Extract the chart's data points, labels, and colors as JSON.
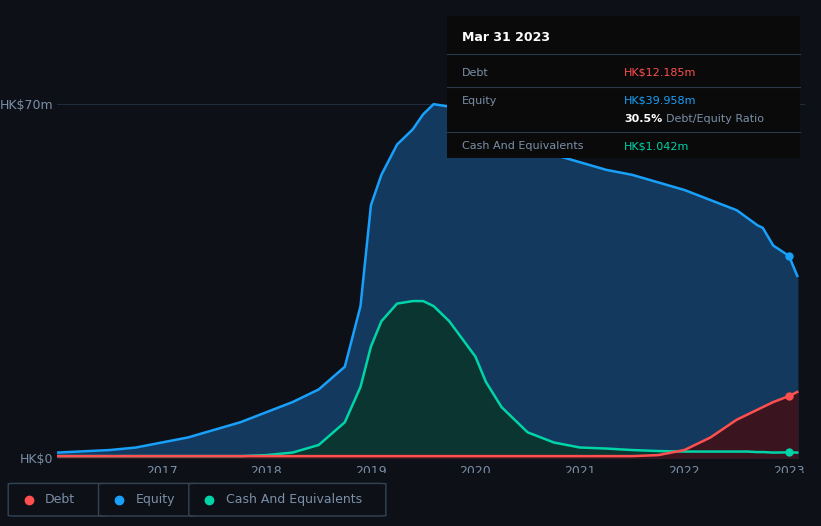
{
  "background_color": "#0d1117",
  "plot_bg_color": "#0d1117",
  "title": "Mar 31 2023",
  "tooltip": {
    "debt_label": "Debt",
    "debt_value": "HK$12.185m",
    "equity_label": "Equity",
    "equity_value": "HK$39.958m",
    "ratio_value": "30.5%",
    "ratio_label": "Debt/Equity Ratio",
    "cash_label": "Cash And Equivalents",
    "cash_value": "HK$1.042m"
  },
  "y_label_top": "HK$70m",
  "y_label_bottom": "HK$0",
  "x_ticks": [
    2017,
    2018,
    2019,
    2020,
    2021,
    2022,
    2023
  ],
  "equity_color": "#18a0fb",
  "equity_fill": "#133a5e",
  "debt_color": "#ff4f4f",
  "debt_fill": "#3a1520",
  "cash_color": "#00d4a8",
  "cash_fill": "#0a3530",
  "grid_color": "#1e2d40",
  "text_color": "#7a8fa8",
  "years": [
    2016.0,
    2016.2,
    2016.5,
    2016.75,
    2017.0,
    2017.25,
    2017.5,
    2017.75,
    2018.0,
    2018.25,
    2018.5,
    2018.75,
    2018.9,
    2019.0,
    2019.1,
    2019.25,
    2019.4,
    2019.5,
    2019.6,
    2019.75,
    2020.0,
    2020.1,
    2020.25,
    2020.5,
    2020.75,
    2021.0,
    2021.25,
    2021.5,
    2021.75,
    2022.0,
    2022.25,
    2022.5,
    2022.6,
    2022.7,
    2022.75,
    2022.85,
    2023.0,
    2023.08
  ],
  "equity": [
    1.0,
    1.2,
    1.5,
    2.0,
    3.0,
    4.0,
    5.5,
    7.0,
    9.0,
    11.0,
    13.5,
    18.0,
    30.0,
    50.0,
    56.0,
    62.0,
    65.0,
    68.0,
    70.0,
    69.5,
    68.5,
    67.0,
    64.0,
    62.0,
    60.0,
    58.5,
    57.0,
    56.0,
    54.5,
    53.0,
    51.0,
    49.0,
    47.5,
    46.0,
    45.5,
    42.0,
    39.958,
    36.0
  ],
  "debt": [
    0.3,
    0.3,
    0.3,
    0.3,
    0.3,
    0.3,
    0.3,
    0.3,
    0.3,
    0.3,
    0.3,
    0.3,
    0.3,
    0.3,
    0.3,
    0.3,
    0.3,
    0.3,
    0.3,
    0.3,
    0.3,
    0.3,
    0.3,
    0.3,
    0.3,
    0.3,
    0.3,
    0.3,
    0.5,
    1.5,
    4.0,
    7.5,
    8.5,
    9.5,
    10.0,
    11.0,
    12.185,
    13.0
  ],
  "cash": [
    0.3,
    0.3,
    0.3,
    0.3,
    0.3,
    0.3,
    0.3,
    0.3,
    0.5,
    1.0,
    2.5,
    7.0,
    14.0,
    22.0,
    27.0,
    30.5,
    31.0,
    31.0,
    30.0,
    27.0,
    20.0,
    15.0,
    10.0,
    5.0,
    3.0,
    2.0,
    1.8,
    1.5,
    1.3,
    1.2,
    1.2,
    1.2,
    1.2,
    1.1,
    1.1,
    1.0,
    1.042,
    1.0
  ],
  "ylim": [
    0,
    75
  ],
  "xlim": [
    2016.0,
    2023.15
  ]
}
